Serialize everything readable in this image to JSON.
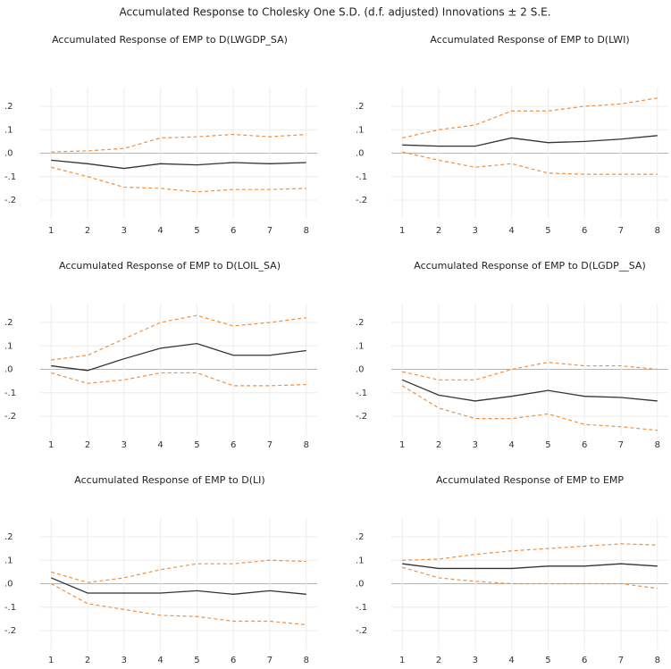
{
  "title": "Accumulated Response to Cholesky One S.D. (d.f. adjusted) Innovations ± 2 S.E.",
  "chart_data": [
    {
      "type": "line",
      "title": "Accumulated Response of EMP to D(LWGDP_SA)",
      "x": [
        1,
        2,
        3,
        4,
        5,
        6,
        7,
        8
      ],
      "xlim": [
        0.7,
        8.3
      ],
      "xticks": [
        1,
        2,
        3,
        4,
        5,
        6,
        7,
        8
      ],
      "ylim": [
        -0.28,
        0.28
      ],
      "yticks": [
        {
          "value": 0.2,
          "label": ".2"
        },
        {
          "value": 0.1,
          "label": ".1"
        },
        {
          "value": 0,
          "label": ".0"
        },
        {
          "value": -0.1,
          "label": "-.1"
        },
        {
          "value": -0.2,
          "label": "-.2"
        }
      ],
      "grid": true,
      "series": [
        {
          "color": "#333333",
          "dashed": false,
          "values": [
            -0.03,
            -0.045,
            -0.065,
            -0.045,
            -0.05,
            -0.04,
            -0.045,
            -0.04
          ]
        },
        {
          "color": "#f0903c",
          "dashed": true,
          "values": [
            0.005,
            0.01,
            0.02,
            0.065,
            0.07,
            0.08,
            0.07,
            0.08
          ]
        },
        {
          "color": "#f0903c",
          "dashed": true,
          "values": [
            -0.06,
            -0.1,
            -0.145,
            -0.15,
            -0.165,
            -0.155,
            -0.155,
            -0.15
          ]
        }
      ]
    },
    {
      "type": "line",
      "title": "Accumulated Response of EMP to D(LWI)",
      "x": [
        1,
        2,
        3,
        4,
        5,
        6,
        7,
        8
      ],
      "xlim": [
        0.7,
        8.3
      ],
      "xticks": [
        1,
        2,
        3,
        4,
        5,
        6,
        7,
        8
      ],
      "ylim": [
        -0.28,
        0.28
      ],
      "yticks": [
        {
          "value": 0.2,
          "label": ".2"
        },
        {
          "value": 0.1,
          "label": ".1"
        },
        {
          "value": 0,
          "label": ".0"
        },
        {
          "value": -0.1,
          "label": "-.1"
        },
        {
          "value": -0.2,
          "label": "-.2"
        }
      ],
      "grid": true,
      "series": [
        {
          "color": "#333333",
          "dashed": false,
          "values": [
            0.035,
            0.03,
            0.03,
            0.065,
            0.045,
            0.05,
            0.06,
            0.075
          ]
        },
        {
          "color": "#f0903c",
          "dashed": true,
          "values": [
            0.065,
            0.1,
            0.12,
            0.18,
            0.18,
            0.2,
            0.21,
            0.235
          ]
        },
        {
          "color": "#f0903c",
          "dashed": true,
          "values": [
            0.005,
            -0.03,
            -0.06,
            -0.045,
            -0.085,
            -0.09,
            -0.09,
            -0.09
          ]
        }
      ]
    },
    {
      "type": "line",
      "title": "Accumulated Response of EMP to D(LOIL_SA)",
      "x": [
        1,
        2,
        3,
        4,
        5,
        6,
        7,
        8
      ],
      "xlim": [
        0.7,
        8.3
      ],
      "xticks": [
        1,
        2,
        3,
        4,
        5,
        6,
        7,
        8
      ],
      "ylim": [
        -0.28,
        0.28
      ],
      "yticks": [
        {
          "value": 0.2,
          "label": ".2"
        },
        {
          "value": 0.1,
          "label": ".1"
        },
        {
          "value": 0,
          "label": ".0"
        },
        {
          "value": -0.1,
          "label": "-.1"
        },
        {
          "value": -0.2,
          "label": "-.2"
        }
      ],
      "grid": true,
      "series": [
        {
          "color": "#333333",
          "dashed": false,
          "values": [
            0.015,
            -0.005,
            0.045,
            0.09,
            0.11,
            0.06,
            0.06,
            0.08
          ]
        },
        {
          "color": "#f0903c",
          "dashed": true,
          "values": [
            0.04,
            0.06,
            0.13,
            0.2,
            0.23,
            0.185,
            0.2,
            0.22
          ]
        },
        {
          "color": "#f0903c",
          "dashed": true,
          "values": [
            -0.015,
            -0.06,
            -0.045,
            -0.015,
            -0.015,
            -0.07,
            -0.07,
            -0.065
          ]
        }
      ]
    },
    {
      "type": "line",
      "title": "Accumulated Response of EMP to D(LGDP__SA)",
      "x": [
        1,
        2,
        3,
        4,
        5,
        6,
        7,
        8
      ],
      "xlim": [
        0.7,
        8.3
      ],
      "xticks": [
        1,
        2,
        3,
        4,
        5,
        6,
        7,
        8
      ],
      "ylim": [
        -0.28,
        0.28
      ],
      "yticks": [
        {
          "value": 0.2,
          "label": ".2"
        },
        {
          "value": 0.1,
          "label": ".1"
        },
        {
          "value": 0,
          "label": ".0"
        },
        {
          "value": -0.1,
          "label": "-.1"
        },
        {
          "value": -0.2,
          "label": "-.2"
        }
      ],
      "grid": true,
      "series": [
        {
          "color": "#333333",
          "dashed": false,
          "values": [
            -0.045,
            -0.11,
            -0.135,
            -0.115,
            -0.09,
            -0.115,
            -0.12,
            -0.135
          ]
        },
        {
          "color": "#f0903c",
          "dashed": true,
          "values": [
            -0.01,
            -0.045,
            -0.045,
            0,
            0.03,
            0.015,
            0.015,
            0
          ]
        },
        {
          "color": "#f0903c",
          "dashed": true,
          "values": [
            -0.07,
            -0.165,
            -0.21,
            -0.21,
            -0.19,
            -0.235,
            -0.245,
            -0.26
          ]
        }
      ]
    },
    {
      "type": "line",
      "title": "Accumulated Response of EMP to D(LI)",
      "x": [
        1,
        2,
        3,
        4,
        5,
        6,
        7,
        8
      ],
      "xlim": [
        0.7,
        8.3
      ],
      "xticks": [
        1,
        2,
        3,
        4,
        5,
        6,
        7,
        8
      ],
      "ylim": [
        -0.28,
        0.28
      ],
      "yticks": [
        {
          "value": 0.2,
          "label": ".2"
        },
        {
          "value": 0.1,
          "label": ".1"
        },
        {
          "value": 0,
          "label": ".0"
        },
        {
          "value": -0.1,
          "label": "-.1"
        },
        {
          "value": -0.2,
          "label": "-.2"
        }
      ],
      "grid": true,
      "series": [
        {
          "color": "#333333",
          "dashed": false,
          "values": [
            0.025,
            -0.04,
            -0.04,
            -0.04,
            -0.03,
            -0.045,
            -0.03,
            -0.045
          ]
        },
        {
          "color": "#f0903c",
          "dashed": true,
          "values": [
            0.05,
            0.005,
            0.025,
            0.06,
            0.085,
            0.085,
            0.1,
            0.095
          ]
        },
        {
          "color": "#f0903c",
          "dashed": true,
          "values": [
            0,
            -0.085,
            -0.11,
            -0.135,
            -0.14,
            -0.16,
            -0.16,
            -0.175
          ]
        }
      ]
    },
    {
      "type": "line",
      "title": "Accumulated Response of EMP to EMP",
      "x": [
        1,
        2,
        3,
        4,
        5,
        6,
        7,
        8
      ],
      "xlim": [
        0.7,
        8.3
      ],
      "xticks": [
        1,
        2,
        3,
        4,
        5,
        6,
        7,
        8
      ],
      "ylim": [
        -0.28,
        0.28
      ],
      "yticks": [
        {
          "value": 0.2,
          "label": ".2"
        },
        {
          "value": 0.1,
          "label": ".1"
        },
        {
          "value": 0,
          "label": ".0"
        },
        {
          "value": -0.1,
          "label": "-.1"
        },
        {
          "value": -0.2,
          "label": "-.2"
        }
      ],
      "grid": true,
      "series": [
        {
          "color": "#333333",
          "dashed": false,
          "values": [
            0.085,
            0.065,
            0.065,
            0.065,
            0.075,
            0.075,
            0.085,
            0.075
          ]
        },
        {
          "color": "#f0903c",
          "dashed": true,
          "values": [
            0.1,
            0.105,
            0.125,
            0.14,
            0.15,
            0.16,
            0.17,
            0.165
          ]
        },
        {
          "color": "#f0903c",
          "dashed": true,
          "values": [
            0.07,
            0.025,
            0.01,
            0,
            0,
            0,
            0,
            -0.02
          ]
        }
      ]
    }
  ]
}
